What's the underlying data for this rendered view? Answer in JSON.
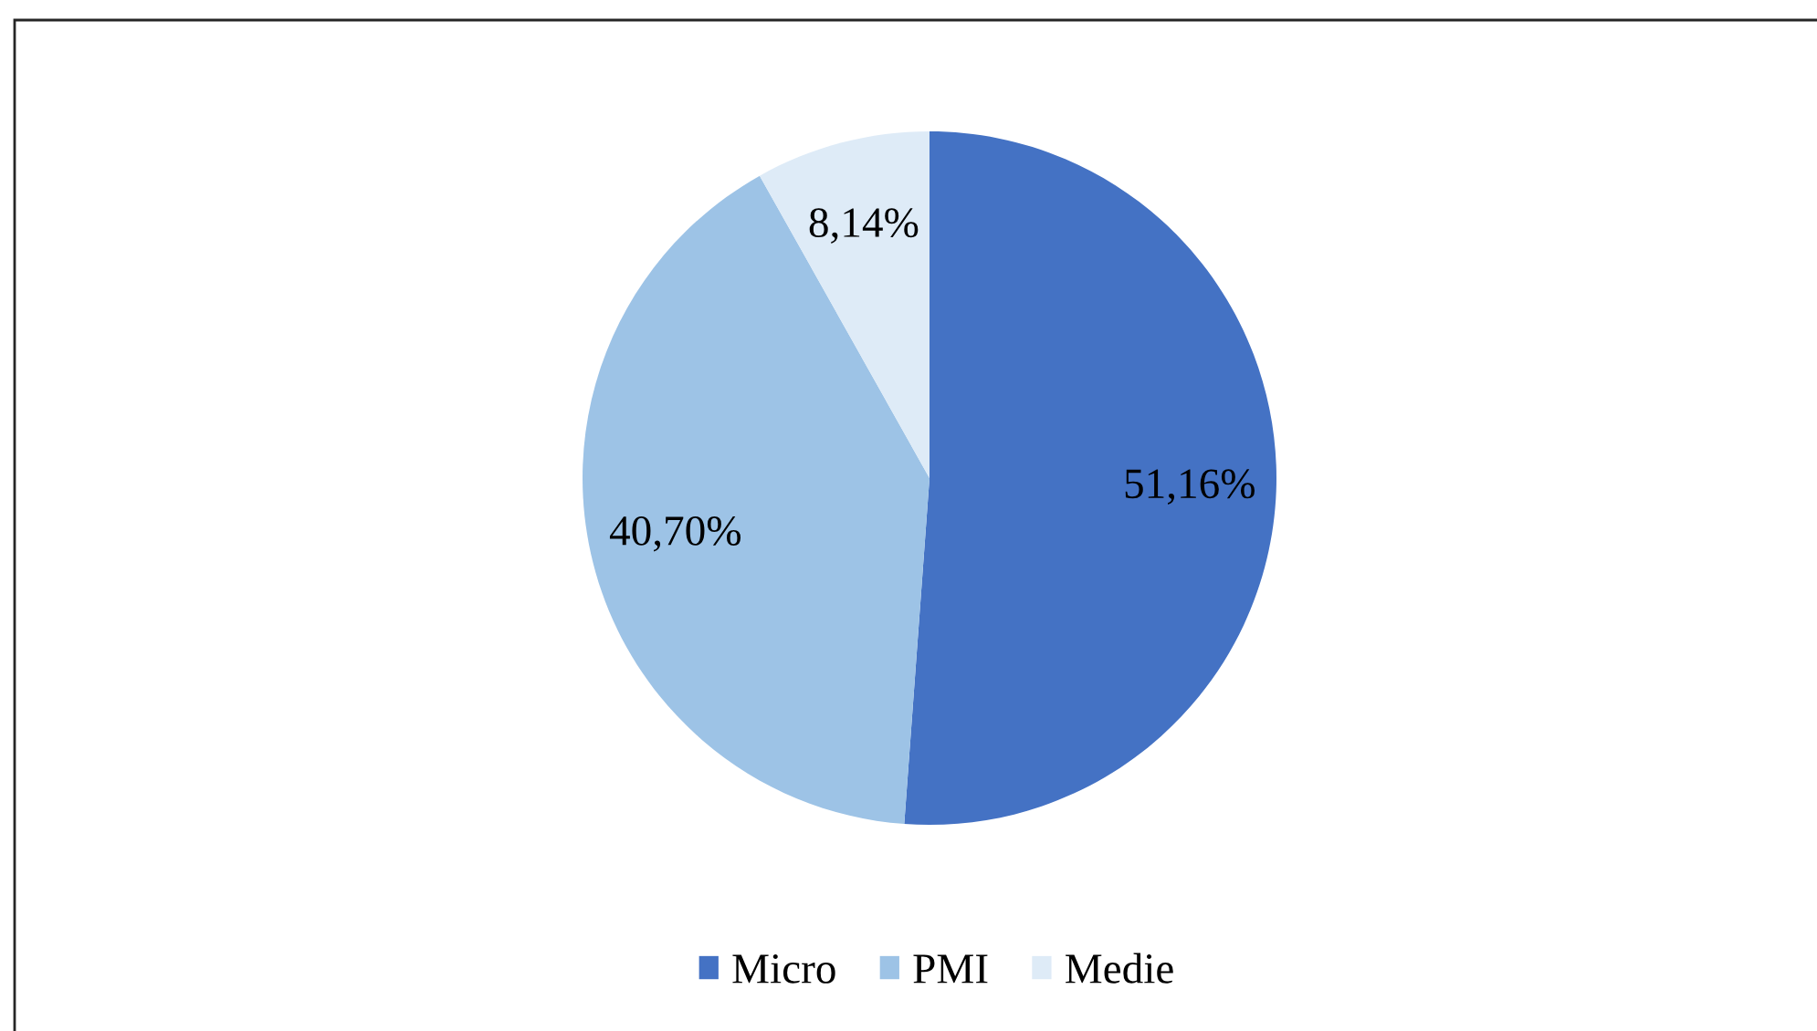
{
  "chart_data": {
    "type": "pie",
    "categories": [
      "Micro",
      "PMI",
      "Medie"
    ],
    "values": [
      51.16,
      40.7,
      8.14
    ],
    "colors": [
      "#4472c4",
      "#9dc3e6",
      "#deebf7"
    ],
    "value_labels": [
      "51,16%",
      "40,70%",
      "8,14%"
    ],
    "legend": "bottom"
  }
}
